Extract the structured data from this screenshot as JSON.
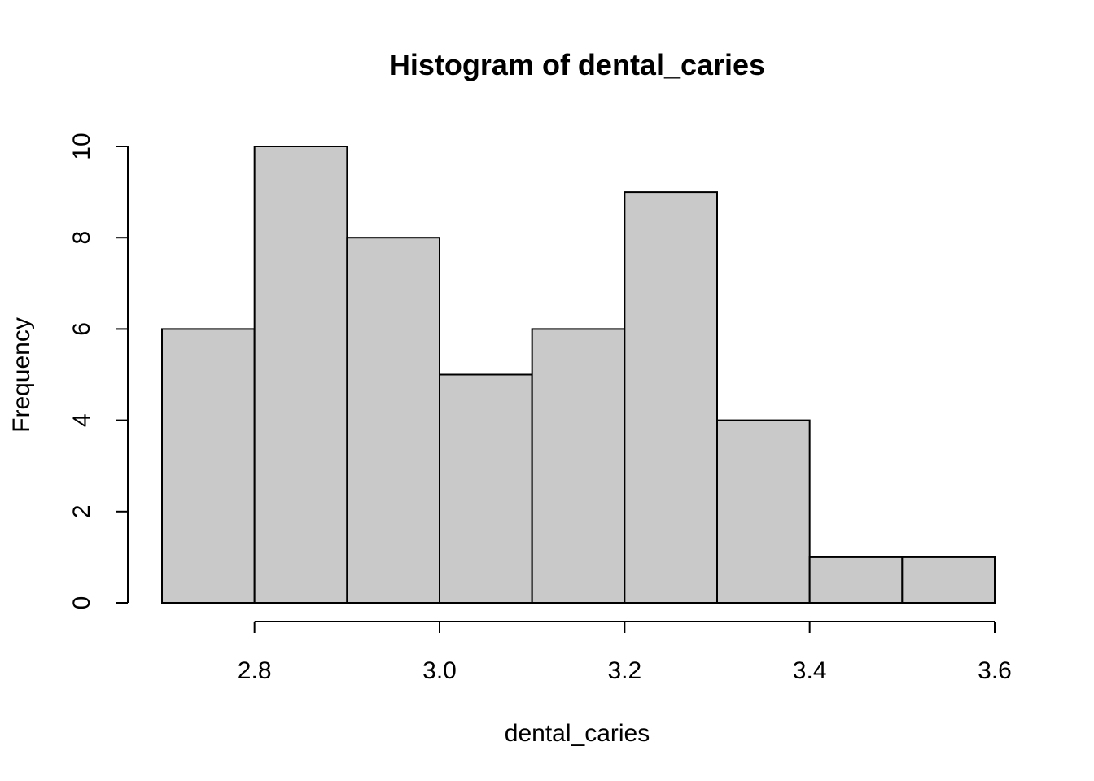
{
  "chart_data": {
    "type": "bar",
    "title": "Histogram of dental_caries",
    "xlabel": "dental_caries",
    "ylabel": "Frequency",
    "bin_edges": [
      2.7,
      2.8,
      2.9,
      3.0,
      3.1,
      3.2,
      3.3,
      3.4,
      3.5,
      3.6
    ],
    "values": [
      6,
      10,
      8,
      5,
      6,
      9,
      4,
      1,
      1
    ],
    "xlim": [
      2.7,
      3.6
    ],
    "ylim": [
      0,
      10
    ],
    "x_ticks": [
      2.8,
      3.0,
      3.2,
      3.4,
      3.6
    ],
    "x_tick_labels": [
      "2.8",
      "3.0",
      "3.2",
      "3.4",
      "3.6"
    ],
    "y_ticks": [
      0,
      2,
      4,
      6,
      8,
      10
    ],
    "y_tick_labels": [
      "0",
      "2",
      "4",
      "6",
      "8",
      "10"
    ],
    "grid": false,
    "bar_color": "#c9c9c9",
    "edge_color": "#000000"
  }
}
